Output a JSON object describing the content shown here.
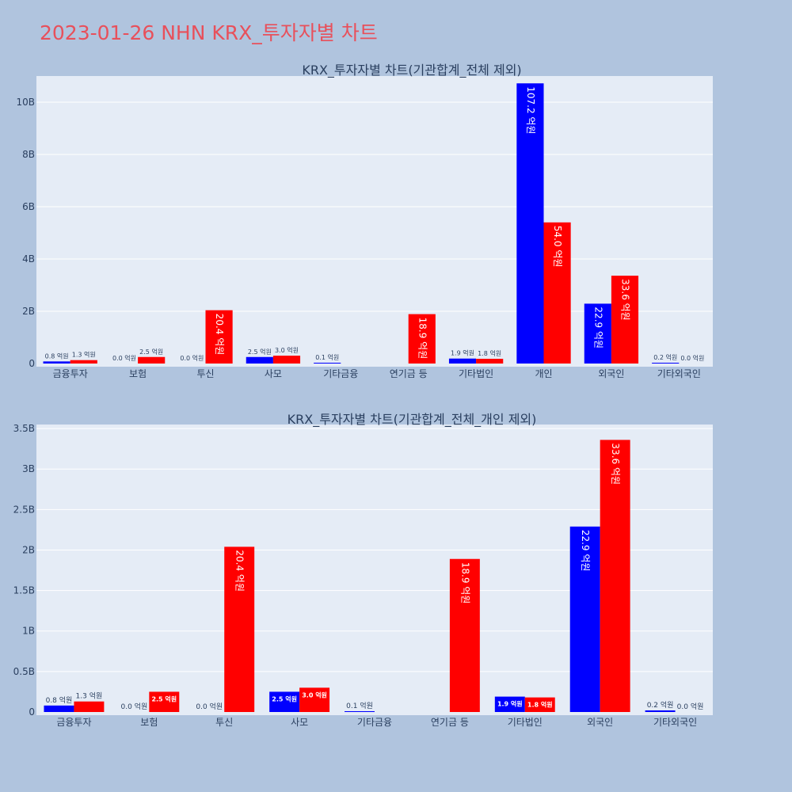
{
  "figure_title": "2023-01-26 NHN KRX_투자자별 차트",
  "colors": {
    "background": "#b0c4de",
    "plot_bg": "#e5ecf6",
    "grid": "#ffffff",
    "title": "#e8505b",
    "text": "#2a3f5f",
    "series_a": "#0000ff",
    "series_b": "#ff0000"
  },
  "chart_data": [
    {
      "type": "bar",
      "title": "KRX_투자자별 차트(기관합계_전체 제외)",
      "categories": [
        "금융투자",
        "보험",
        "투신",
        "사모",
        "기타금융",
        "연기금 등",
        "기타법인",
        "개인",
        "외국인",
        "기타외국인"
      ],
      "series": [
        {
          "color": "#0000ff",
          "values": [
            0.08,
            0.0,
            0.0,
            0.25,
            0.01,
            0.0,
            0.19,
            10.72,
            2.29,
            0.02
          ],
          "labels": [
            "0.8 억원",
            "0.0 억원",
            "0.0 억원",
            "2.5 억원",
            "0.1 억원",
            "",
            "1.9 억원",
            "107.2 억원",
            "22.9 억원",
            "0.2 억원"
          ]
        },
        {
          "color": "#ff0000",
          "values": [
            0.13,
            0.25,
            2.04,
            0.3,
            0.0,
            1.89,
            0.18,
            5.4,
            3.36,
            0.0
          ],
          "labels": [
            "1.3 억원",
            "2.5 억원",
            "20.4 억원",
            "3.0 억원",
            "",
            "18.9 억원",
            "1.8 억원",
            "54.0 억원",
            "33.6 억원",
            "0.0 억원"
          ]
        }
      ],
      "ylim": [
        0,
        11.0
      ],
      "yticks": [
        0,
        2,
        4,
        6,
        8,
        10
      ],
      "ytick_labels": [
        "0",
        "2B",
        "4B",
        "6B",
        "8B",
        "10B"
      ],
      "grid": true,
      "xlabel": "",
      "ylabel": ""
    },
    {
      "type": "bar",
      "title": "KRX_투자자별 차트(기관합계_전체_개인 제외)",
      "categories": [
        "금융투자",
        "보험",
        "투신",
        "사모",
        "기타금융",
        "연기금 등",
        "기타법인",
        "외국인",
        "기타외국인"
      ],
      "series": [
        {
          "color": "#0000ff",
          "values": [
            0.08,
            0.0,
            0.0,
            0.25,
            0.01,
            0.0,
            0.19,
            2.29,
            0.02
          ],
          "labels": [
            "0.8 억원",
            "0.0 억원",
            "0.0 억원",
            "2.5 억원",
            "0.1 억원",
            "",
            "1.9 억원",
            "22.9 억원",
            "0.2 억원"
          ]
        },
        {
          "color": "#ff0000",
          "values": [
            0.13,
            0.25,
            2.04,
            0.3,
            0.0,
            1.89,
            0.18,
            3.36,
            0.0
          ],
          "labels": [
            "1.3 억원",
            "2.5 억원",
            "20.4 억원",
            "3.0 억원",
            "",
            "18.9 억원",
            "1.8 억원",
            "33.6 억원",
            "0.0 억원"
          ]
        }
      ],
      "ylim": [
        0,
        3.55
      ],
      "yticks": [
        0,
        0.5,
        1,
        1.5,
        2,
        2.5,
        3,
        3.5
      ],
      "ytick_labels": [
        "0",
        "0.5B",
        "1B",
        "1.5B",
        "2B",
        "2.5B",
        "3B",
        "3.5B"
      ],
      "grid": true,
      "xlabel": "",
      "ylabel": ""
    }
  ]
}
